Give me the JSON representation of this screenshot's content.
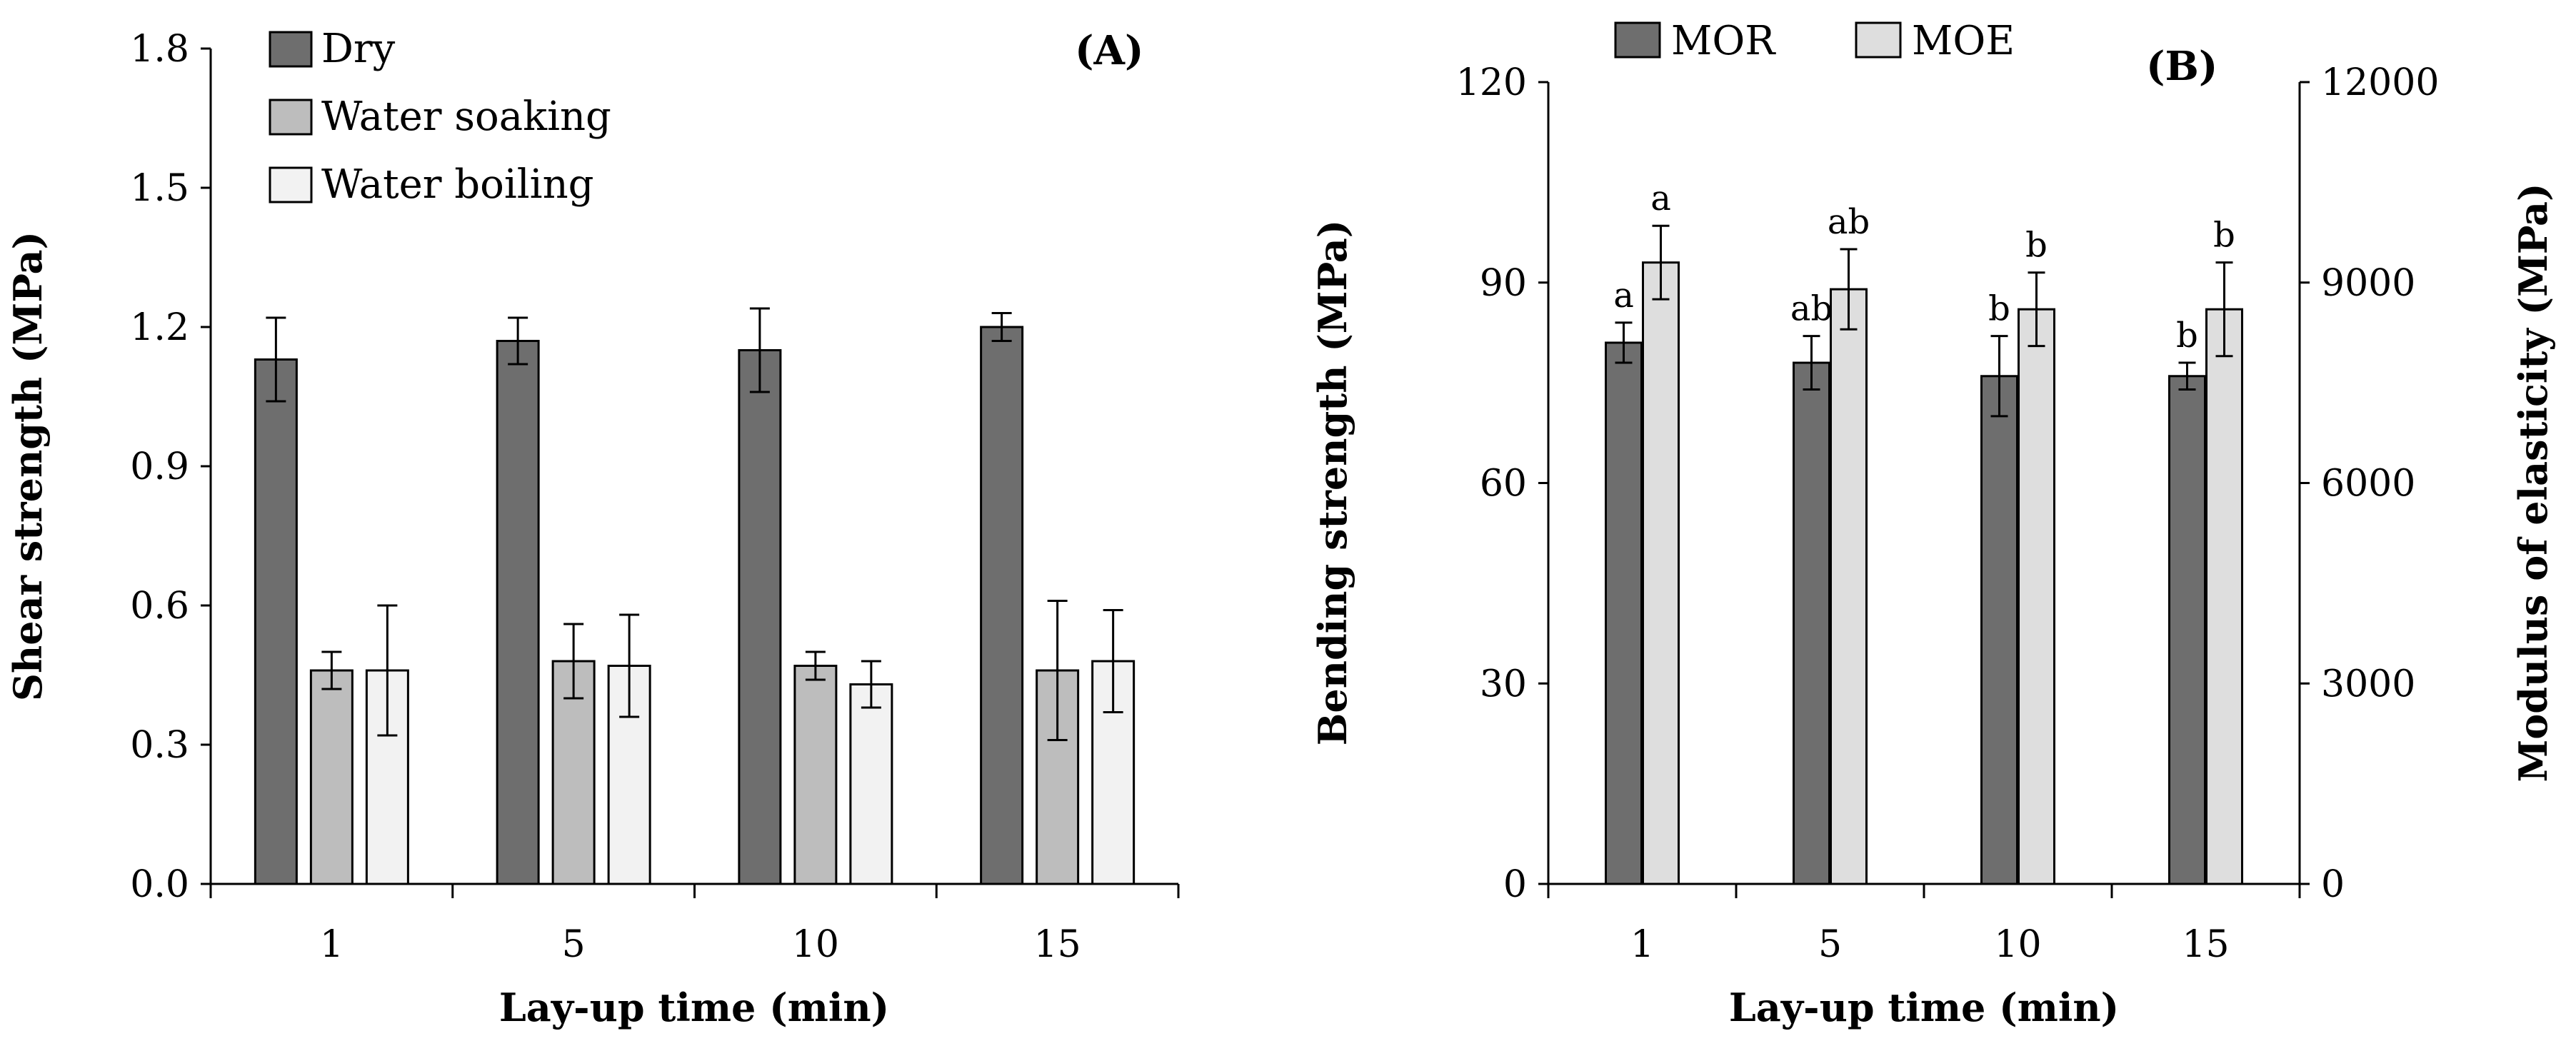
{
  "chart_data": [
    {
      "type": "bar",
      "panel_label": "(A)",
      "categories": [
        "1",
        "5",
        "10",
        "15"
      ],
      "series": [
        {
          "name": "Dry",
          "color": "#6e6e6e",
          "values": [
            1.13,
            1.17,
            1.15,
            1.2
          ],
          "errors": [
            0.09,
            0.05,
            0.09,
            0.03
          ]
        },
        {
          "name": "Water soaking",
          "color": "#bdbdbd",
          "values": [
            0.46,
            0.48,
            0.47,
            0.46
          ],
          "errors": [
            0.04,
            0.08,
            0.03,
            0.15
          ]
        },
        {
          "name": "Water boiling",
          "color": "#f2f2f2",
          "values": [
            0.46,
            0.47,
            0.43,
            0.48
          ],
          "errors": [
            0.14,
            0.11,
            0.05,
            0.11
          ]
        }
      ],
      "xlabel": "Lay-up time (min)",
      "ylabel": "Shear strength (MPa)",
      "ylim": [
        0,
        1.8
      ],
      "yticks": [
        "0.0",
        "0.3",
        "0.6",
        "0.9",
        "1.2",
        "1.5",
        "1.8"
      ],
      "legend_position": "top-left"
    },
    {
      "type": "bar",
      "panel_label": "(B)",
      "categories": [
        "1",
        "5",
        "10",
        "15"
      ],
      "series": [
        {
          "name": "MOR",
          "axis": "left",
          "color": "#6e6e6e",
          "values": [
            81,
            78,
            76,
            76
          ],
          "errors": [
            3,
            4,
            6,
            2
          ],
          "labels": [
            "a",
            "ab",
            "b",
            "b"
          ]
        },
        {
          "name": "MOE",
          "axis": "right",
          "color": "#dedede",
          "values": [
            9300,
            8900,
            8600,
            8600
          ],
          "errors": [
            550,
            600,
            550,
            700
          ],
          "labels": [
            "a",
            "ab",
            "b",
            "b"
          ]
        }
      ],
      "xlabel": "Lay-up time (min)",
      "ylabel": "Bending strength (MPa)",
      "ylabel_right": "Modulus of elasticity (MPa)",
      "ylim": [
        0,
        120
      ],
      "ylim_right": [
        0,
        12000
      ],
      "yticks": [
        "0",
        "30",
        "60",
        "90",
        "120"
      ],
      "yticks_right": [
        "0",
        "3000",
        "6000",
        "9000",
        "12000"
      ],
      "legend_position": "top"
    }
  ]
}
